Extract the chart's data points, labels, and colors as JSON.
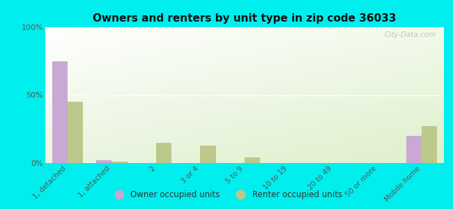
{
  "title": "Owners and renters by unit type in zip code 36033",
  "categories": [
    "1, detached",
    "1, attached",
    "2",
    "3 or 4",
    "5 to 9",
    "10 to 19",
    "20 to 49",
    "50 or more",
    "Mobile home"
  ],
  "owner_values": [
    75,
    2,
    0,
    0,
    0,
    0,
    0,
    0,
    20
  ],
  "renter_values": [
    45,
    1,
    15,
    13,
    4,
    0,
    0,
    0,
    27
  ],
  "owner_color": "#c9a8d4",
  "renter_color": "#bdc98a",
  "background_fig": "#00eeee",
  "ylim": [
    0,
    100
  ],
  "yticks": [
    0,
    50,
    100
  ],
  "ytick_labels": [
    "0%",
    "50%",
    "100%"
  ],
  "bar_width": 0.35,
  "legend_owner": "Owner occupied units",
  "legend_renter": "Renter occupied units",
  "watermark": "City-Data.com"
}
